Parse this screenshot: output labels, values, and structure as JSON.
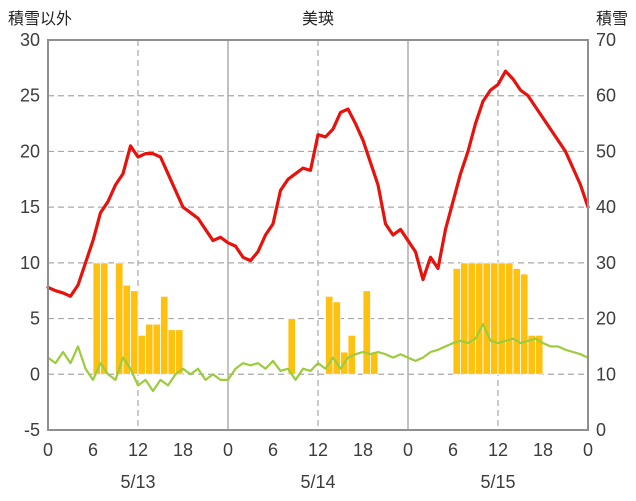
{
  "chart_data": {
    "type": "line",
    "title": "美瑛",
    "left_axis": {
      "label": "積雪以外",
      "min": -5,
      "max": 30,
      "ticks": [
        30,
        25,
        20,
        15,
        10,
        5,
        0,
        -5
      ]
    },
    "right_axis": {
      "label": "積雪",
      "min": 0,
      "max": 70,
      "ticks": [
        70,
        60,
        50,
        40,
        30,
        20,
        10,
        0
      ]
    },
    "x_axis": {
      "min": 0,
      "max": 72,
      "ticks": [
        {
          "x": 0,
          "label": "0"
        },
        {
          "x": 6,
          "label": "6"
        },
        {
          "x": 12,
          "label": "12"
        },
        {
          "x": 18,
          "label": "18"
        },
        {
          "x": 24,
          "label": "0"
        },
        {
          "x": 30,
          "label": "6"
        },
        {
          "x": 36,
          "label": "12"
        },
        {
          "x": 42,
          "label": "18"
        },
        {
          "x": 48,
          "label": "0"
        },
        {
          "x": 54,
          "label": "6"
        },
        {
          "x": 60,
          "label": "12"
        },
        {
          "x": 66,
          "label": "18"
        },
        {
          "x": 72,
          "label": "0"
        }
      ],
      "day_labels": [
        {
          "x": 12,
          "label": "5/13"
        },
        {
          "x": 36,
          "label": "5/14"
        },
        {
          "x": 60,
          "label": "5/15"
        }
      ],
      "grid_solid": [
        24,
        48
      ],
      "grid_dashed": [
        12,
        36,
        60
      ]
    },
    "series": [
      {
        "name": "precip-bars",
        "type": "bar",
        "color": "#ffc110",
        "axis": "left",
        "baseline": 0,
        "points": [
          {
            "x": 6,
            "v": 10
          },
          {
            "x": 7,
            "v": 10
          },
          {
            "x": 9,
            "v": 10
          },
          {
            "x": 10,
            "v": 8
          },
          {
            "x": 11,
            "v": 7.5
          },
          {
            "x": 12,
            "v": 3.5
          },
          {
            "x": 13,
            "v": 4.5
          },
          {
            "x": 14,
            "v": 4.5
          },
          {
            "x": 15,
            "v": 7
          },
          {
            "x": 16,
            "v": 4
          },
          {
            "x": 17,
            "v": 4
          },
          {
            "x": 32,
            "v": 5
          },
          {
            "x": 37,
            "v": 7
          },
          {
            "x": 38,
            "v": 6.5
          },
          {
            "x": 39,
            "v": 2
          },
          {
            "x": 40,
            "v": 3.5
          },
          {
            "x": 42,
            "v": 7.5
          },
          {
            "x": 43,
            "v": 2
          },
          {
            "x": 54,
            "v": 9.5
          },
          {
            "x": 55,
            "v": 10
          },
          {
            "x": 56,
            "v": 10
          },
          {
            "x": 57,
            "v": 10
          },
          {
            "x": 58,
            "v": 10
          },
          {
            "x": 59,
            "v": 10
          },
          {
            "x": 60,
            "v": 10
          },
          {
            "x": 61,
            "v": 10
          },
          {
            "x": 62,
            "v": 9.5
          },
          {
            "x": 63,
            "v": 9
          },
          {
            "x": 64,
            "v": 3.5
          },
          {
            "x": 65,
            "v": 3.5
          }
        ]
      },
      {
        "name": "green-line",
        "type": "line",
        "color": "#9ccb3b",
        "width": 2.2,
        "axis": "left",
        "values": [
          1.5,
          1.0,
          2.0,
          1.0,
          2.5,
          0.5,
          -0.5,
          1.0,
          0.0,
          -0.5,
          1.5,
          0.5,
          -1.0,
          -0.5,
          -1.5,
          -0.5,
          -1.0,
          0.0,
          0.5,
          0.0,
          0.5,
          -0.5,
          0.0,
          -0.5,
          -0.5,
          0.5,
          1.0,
          0.8,
          1.0,
          0.5,
          1.2,
          0.3,
          0.5,
          -0.5,
          0.5,
          0.3,
          1.0,
          0.5,
          1.5,
          0.5,
          1.5,
          1.8,
          2.0,
          1.8,
          2.0,
          1.8,
          1.5,
          1.8,
          1.5,
          1.2,
          1.5,
          2.0,
          2.2,
          2.5,
          2.8,
          3.0,
          2.8,
          3.2,
          4.5,
          3.0,
          2.8,
          3.0,
          3.2,
          2.8,
          3.0,
          3.2,
          2.8,
          2.5,
          2.5,
          2.2,
          2.0,
          1.8,
          1.5
        ]
      },
      {
        "name": "red-line",
        "type": "line",
        "color": "#e8120c",
        "width": 3.2,
        "axis": "left",
        "values": [
          7.8,
          7.5,
          7.3,
          7.0,
          8.0,
          10.0,
          12.0,
          14.5,
          15.5,
          17.0,
          18.0,
          20.5,
          19.5,
          19.8,
          19.8,
          19.5,
          18.0,
          16.5,
          15.0,
          14.5,
          14.0,
          13.0,
          12.0,
          12.3,
          11.8,
          11.5,
          10.5,
          10.2,
          11.0,
          12.5,
          13.5,
          16.5,
          17.5,
          18.0,
          18.5,
          18.3,
          21.5,
          21.3,
          22.0,
          23.5,
          23.8,
          22.5,
          21.0,
          19.0,
          17.0,
          13.5,
          12.5,
          13.0,
          12.0,
          11.0,
          8.5,
          10.5,
          9.5,
          13.0,
          15.5,
          18.0,
          20.0,
          22.5,
          24.5,
          25.5,
          26.0,
          27.2,
          26.5,
          25.5,
          25.0,
          24.0,
          23.0,
          22.0,
          21.0,
          20.0,
          18.5,
          17.0,
          15.0
        ]
      }
    ],
    "style": {
      "grid_color": "#a8a8a8",
      "border_color": "#8f8f8f",
      "text_color": "#3d3d3d",
      "background": "#ffffff"
    }
  }
}
